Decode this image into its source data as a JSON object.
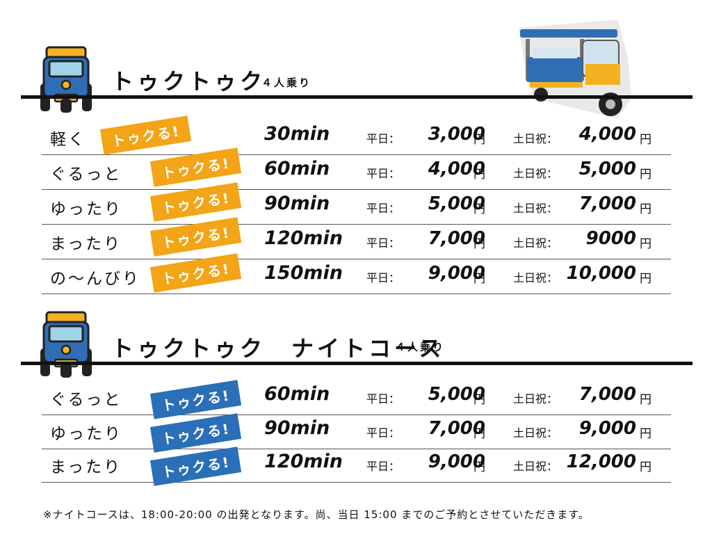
{
  "section1": {
    "title": "トゥクトゥク",
    "subtitle": "４人乗り",
    "rows": [
      {
        "name": "軽く",
        "badge": "トゥクる!",
        "duration": "30min",
        "weekday_label": "平日：",
        "weekday_price": "3,000",
        "weekend_label": "土日祝：",
        "weekend_price": "4,000",
        "currency": "円"
      },
      {
        "name": "ぐるっと",
        "badge": "トゥクる!",
        "duration": "60min",
        "weekday_label": "平日：",
        "weekday_price": "4,000",
        "weekend_label": "土日祝：",
        "weekend_price": "5,000",
        "currency": "円"
      },
      {
        "name": "ゆったり",
        "badge": "トゥクる!",
        "duration": "90min",
        "weekday_label": "平日：",
        "weekday_price": "5,000",
        "weekend_label": "土日祝：",
        "weekend_price": "7,000",
        "currency": "円"
      },
      {
        "name": "まったり",
        "badge": "トゥクる!",
        "duration": "120min",
        "weekday_label": "平日：",
        "weekday_price": "7,000",
        "weekend_label": "土日祝：",
        "weekend_price": "9000",
        "currency": "円"
      },
      {
        "name": "の～んびり",
        "badge": "トゥクる!",
        "duration": "150min",
        "weekday_label": "平日：",
        "weekday_price": "9,000",
        "weekend_label": "土日祝：",
        "weekend_price": "10,000",
        "currency": "円"
      }
    ]
  },
  "section2": {
    "title": "トゥクトゥク　ナイトコース",
    "subtitle": "４人乗り",
    "rows": [
      {
        "name": "ぐるっと",
        "badge": "トゥクる!",
        "duration": "60min",
        "weekday_label": "平日：",
        "weekday_price": "5,000",
        "weekend_label": "土日祝：",
        "weekend_price": "7,000",
        "currency": "円"
      },
      {
        "name": "ゆったり",
        "badge": "トゥクる!",
        "duration": "90min",
        "weekday_label": "平日：",
        "weekday_price": "7,000",
        "weekend_label": "土日祝：",
        "weekend_price": "9,000",
        "currency": "円"
      },
      {
        "name": "まったり",
        "badge": "トゥクる!",
        "duration": "120min",
        "weekday_label": "平日：",
        "weekday_price": "9,000",
        "weekend_label": "土日祝：",
        "weekend_price": "12,000",
        "currency": "円"
      }
    ]
  },
  "footnote": "※ナイトコースは、18:00-20:00 の出発となります。尚、当日 15:00 までのご予約とさせていただきます。",
  "colors": {
    "badge_day": "#f3a417",
    "badge_night": "#2a6fb8",
    "icon_blue": "#2f6db5",
    "icon_yellow": "#f4b223"
  }
}
